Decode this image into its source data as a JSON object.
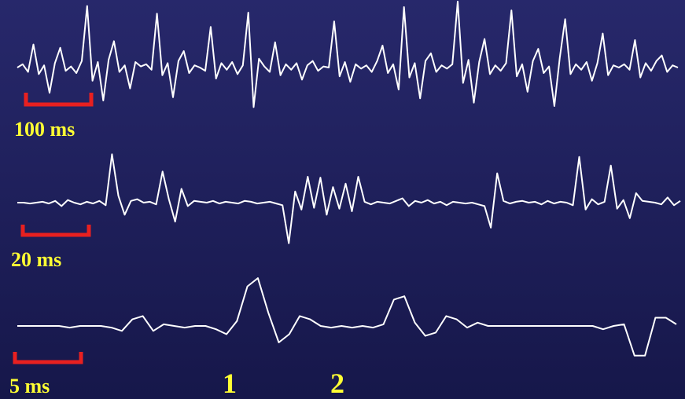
{
  "colors": {
    "trace": "#ffffff",
    "scale_bar": "#e82020",
    "label": "#ffff33",
    "background_top": "#27286b",
    "background_bottom": "#16174a"
  },
  "chart_data": [
    {
      "type": "line",
      "panel": "top",
      "scale_bar_label": "100 ms",
      "description_level": "dense spike train",
      "series": [
        {
          "values": [
            0,
            0.3,
            -0.4,
            2.1,
            -0.6,
            0.2,
            -2.3,
            0.4,
            1.8,
            -0.3,
            0.1,
            -0.5,
            0.6,
            5.6,
            -1.2,
            0.5,
            -3.0,
            0.7,
            2.4,
            -0.4,
            0.2,
            -1.9,
            0.5,
            0.1,
            0.3,
            -0.2,
            4.9,
            -0.7,
            0.4,
            -2.7,
            0.6,
            1.5,
            -0.5,
            0.2,
            0.0,
            -0.3,
            3.7,
            -1.0,
            0.4,
            -0.2,
            0.5,
            -0.6,
            0.2,
            5.0,
            -3.6,
            0.8,
            0.1,
            -0.4,
            2.3,
            -0.7,
            0.3,
            -0.2,
            0.4,
            -1.1,
            0.2,
            0.6,
            -0.3,
            0.1,
            0.0,
            4.2,
            -0.8,
            0.5,
            -1.3,
            0.3,
            -0.1,
            0.2,
            -0.4,
            0.6,
            2.0,
            -0.5,
            0.3,
            -2.0,
            5.5,
            -0.9,
            0.4,
            -2.8,
            0.6,
            1.3,
            -0.4,
            0.2,
            -0.1,
            0.3,
            6.0,
            -1.4,
            0.7,
            -3.2,
            0.5,
            2.6,
            -0.6,
            0.2,
            -0.3,
            0.4,
            5.2,
            -0.8,
            0.3,
            -2.2,
            0.6,
            1.7,
            -0.5,
            0.1,
            -3.5,
            0.9,
            4.4,
            -0.6,
            0.3,
            -0.2,
            0.5,
            -1.2,
            0.4,
            3.1,
            -0.7,
            0.2,
            0.0,
            0.3,
            -0.2,
            2.5,
            -0.9,
            0.4,
            -0.3,
            0.6,
            1.1,
            -0.4,
            0.2,
            0.0
          ]
        }
      ]
    },
    {
      "type": "line",
      "panel": "middle",
      "scale_bar_label": "20 ms",
      "series": [
        {
          "values": [
            0,
            0,
            -0.1,
            0,
            0.1,
            -0.1,
            0.2,
            -0.4,
            0.3,
            0,
            -0.2,
            0.1,
            -0.1,
            0.2,
            -0.3,
            5.6,
            0.8,
            -1.4,
            0.2,
            0.4,
            0,
            0.1,
            -0.2,
            3.6,
            0.4,
            -2.2,
            1.6,
            -0.4,
            0.2,
            0.1,
            0,
            0.2,
            -0.1,
            0.1,
            0,
            -0.1,
            0.2,
            0.1,
            -0.1,
            0,
            0.1,
            -0.1,
            -0.3,
            -4.7,
            1.3,
            -0.8,
            3.0,
            -0.6,
            2.9,
            -1.4,
            1.8,
            -0.7,
            2.2,
            -1.0,
            3.0,
            0.1,
            -0.2,
            0.1,
            0,
            -0.1,
            0.2,
            0.5,
            -0.4,
            0.2,
            0,
            0.3,
            -0.1,
            0.1,
            -0.3,
            0.1,
            0,
            -0.1,
            0,
            -0.2,
            -0.4,
            -2.9,
            3.4,
            0.2,
            -0.1,
            0.1,
            0.2,
            0,
            0.1,
            -0.2,
            0.2,
            -0.1,
            0.1,
            0,
            -0.3,
            5.3,
            -0.8,
            0.4,
            -0.2,
            0.1,
            4.3,
            -0.7,
            0.3,
            -1.8,
            1.1,
            0.2,
            0.1,
            0,
            -0.2,
            0.6,
            -0.3,
            0.2
          ]
        }
      ]
    },
    {
      "type": "line",
      "panel": "bottom",
      "scale_bar_label": "5 ms",
      "spike_labels": [
        "1",
        "2"
      ],
      "series": [
        {
          "values": [
            0,
            0,
            0,
            0,
            0,
            -0.1,
            0,
            0,
            0,
            -0.1,
            -0.3,
            0.4,
            0.6,
            -0.3,
            0.1,
            0,
            -0.1,
            0,
            0,
            -0.2,
            -0.5,
            0.3,
            2.4,
            2.9,
            0.8,
            -1.0,
            -0.5,
            0.6,
            0.4,
            0,
            -0.1,
            0,
            -0.1,
            0,
            -0.1,
            0.1,
            1.6,
            1.8,
            0.2,
            -0.6,
            -0.4,
            0.6,
            0.4,
            -0.1,
            0.2,
            0,
            0,
            0,
            0,
            0,
            0,
            0,
            0,
            0,
            0,
            0,
            -0.2,
            0,
            0.1,
            -1.8,
            -1.8,
            0.5,
            0.5,
            0.1
          ]
        }
      ]
    }
  ]
}
